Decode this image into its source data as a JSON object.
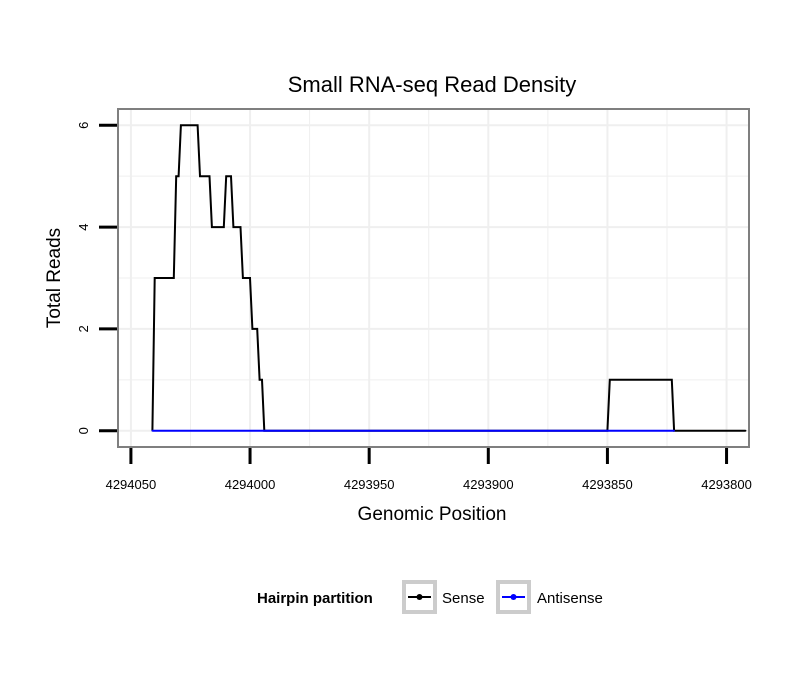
{
  "chart_data": {
    "type": "line",
    "title": "Small RNA-seq Read Density",
    "xlabel": "Genomic Position",
    "ylabel": "Total Reads",
    "x_reversed": true,
    "xlim": [
      4294055,
      4293791
    ],
    "ylim": [
      -0.3,
      6.3
    ],
    "x_ticks": [
      4294050,
      4294000,
      4293950,
      4293900,
      4293850,
      4293800
    ],
    "x_tick_labels": [
      "4294050",
      "4294000",
      "4293950",
      "4293900",
      "4293850",
      "4293800"
    ],
    "y_ticks": [
      0,
      2,
      4,
      6
    ],
    "y_tick_labels": [
      "0",
      "2",
      "4",
      "6"
    ],
    "grid": true,
    "legend": {
      "title": "Hairpin partition",
      "position": "bottom",
      "entries": [
        {
          "label": "Sense",
          "color": "#000000"
        },
        {
          "label": "Antisense",
          "color": "#0000ff"
        }
      ]
    },
    "series": [
      {
        "name": "Sense",
        "color": "#000000",
        "x": [
          4294041,
          4294040,
          4294032,
          4294031,
          4294030,
          4294029,
          4294022,
          4294021,
          4294017,
          4294016,
          4294011,
          4294010,
          4294008,
          4294007,
          4294004,
          4294003,
          4294000,
          4293999,
          4293997,
          4293996,
          4293995,
          4293994,
          4293993,
          4293992,
          4293850,
          4293849,
          4293823,
          4293822,
          4293792
        ],
        "y": [
          0,
          3,
          3,
          5,
          5,
          6,
          6,
          5,
          5,
          4,
          4,
          5,
          5,
          4,
          4,
          3,
          3,
          2,
          2,
          1,
          1,
          0,
          0,
          0,
          0,
          1,
          1,
          0,
          0
        ]
      },
      {
        "name": "Antisense",
        "color": "#0000ff",
        "x": [
          4294041,
          4293992,
          4293850,
          4293822
        ],
        "y": [
          0,
          0,
          0,
          0
        ]
      }
    ]
  },
  "colors": {
    "grid": "#efefef",
    "panel_border": "#7f7f7f",
    "legend_key_border": "#cccccc"
  }
}
